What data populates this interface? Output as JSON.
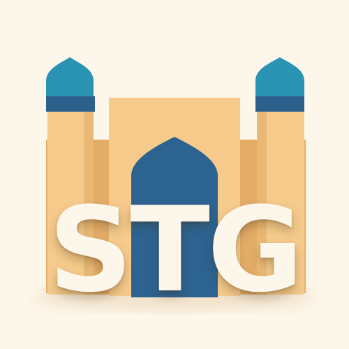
{
  "logo": {
    "wordmark": [
      "S",
      "T",
      "G"
    ],
    "icon_name": "mosque-icon"
  },
  "colors": {
    "background": "#fdf6ea",
    "building_light": "#f5ca8b",
    "building_shadow": "#e6b16c",
    "building_back": "#eec082",
    "dome_cap": "#2a92b2",
    "dome_band": "#2c5f8c",
    "archway": "#2d6391",
    "text": "#fdf6ea"
  }
}
